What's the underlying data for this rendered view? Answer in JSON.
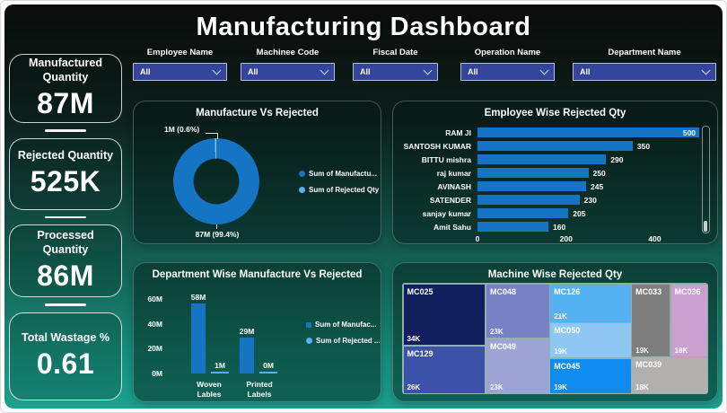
{
  "page_title": "Manufacturing Dashboard",
  "kpis": [
    {
      "label": "Manufactured Quantity",
      "value": "87M"
    },
    {
      "label": "Rejected Quantity",
      "value": "525K"
    },
    {
      "label": "Processed Quantity",
      "value": "86M"
    },
    {
      "label": "Total Wastage %",
      "value": "0.61"
    }
  ],
  "filters": [
    {
      "label": "Employee Name",
      "value": "All"
    },
    {
      "label": "Machinee Code",
      "value": "All"
    },
    {
      "label": "Fiscal Date",
      "value": "All"
    },
    {
      "label": "Operation Name",
      "value": "All"
    },
    {
      "label": "Department Name",
      "value": "All"
    }
  ],
  "chart_data": [
    {
      "type": "pie",
      "title": "Manufacture Vs Rejected",
      "legend_position": "right",
      "slices": [
        {
          "name": "Sum of Manufacture Qty",
          "label": "87M (99.4%)",
          "pct": 99.4,
          "value": "87M",
          "color": "#1574C4"
        },
        {
          "name": "Sum of Rejected Qty",
          "label": "1M (0.6%)",
          "pct": 0.6,
          "value": "1M",
          "color": "#7CC2F2"
        }
      ],
      "legend": [
        {
          "label": "Sum of Manufactu...",
          "color": "#1574C4"
        },
        {
          "label": "Sum of Rejected Qty",
          "color": "#54B0F0"
        }
      ]
    },
    {
      "type": "bar",
      "title": "Employee Wise Rejected Qty",
      "orientation": "horizontal",
      "bar_color": "#1574C4",
      "x_ticks": [
        "0",
        "200",
        "400"
      ],
      "x_max": 506,
      "rows": [
        {
          "name": "RAM JI",
          "value": 500
        },
        {
          "name": "SANTOSH KUMAR",
          "value": 350
        },
        {
          "name": "BITTU mishra",
          "value": 290
        },
        {
          "name": "raj kumar",
          "value": 250
        },
        {
          "name": "AVINASH",
          "value": 245
        },
        {
          "name": "SATENDER",
          "value": 230
        },
        {
          "name": "sanjay kumar",
          "value": 205
        },
        {
          "name": "Amit Sahu",
          "value": 160
        }
      ]
    },
    {
      "type": "bar",
      "title": "Department Wise Manufacture Vs Rejected",
      "orientation": "vertical",
      "y_ticks": [
        "0M",
        "20M",
        "40M",
        "60M"
      ],
      "y_axis_max": 65,
      "legend": [
        {
          "label": "Sum of Manufac...",
          "color": "#1574C4"
        },
        {
          "label": "Sum of Rejected ...",
          "color": "#54B0F0"
        }
      ],
      "groups": [
        {
          "category": "Woven Lables",
          "mfg": {
            "label": "58M",
            "value": 58
          },
          "rej": {
            "label": "1M",
            "value": 1
          }
        },
        {
          "category": "Printed Labels",
          "mfg": {
            "label": "29M",
            "value": 29
          },
          "rej": {
            "label": "0M",
            "value": 0
          }
        }
      ]
    },
    {
      "type": "treemap",
      "title": "Machine Wise Rejected Qty",
      "tiles": [
        {
          "id": "MC025",
          "value": "34K",
          "color": "#111F5C"
        },
        {
          "id": "MC129",
          "value": "26K",
          "color": "#3B52A8"
        },
        {
          "id": "MC048",
          "value": "23K",
          "color": "#7681C6"
        },
        {
          "id": "MC049",
          "value": "23K",
          "color": "#9CA4D6"
        },
        {
          "id": "MC126",
          "value": "21K",
          "color": "#54B2F2"
        },
        {
          "id": "MC050",
          "value": "19K",
          "color": "#8EC8F2"
        },
        {
          "id": "MC045",
          "value": "19K",
          "color": "#0E8DEE"
        },
        {
          "id": "MC033",
          "value": "19K",
          "color": "#7E7E7E"
        },
        {
          "id": "MC036",
          "value": "18K",
          "color": "#C9A0D0"
        },
        {
          "id": "MC039",
          "value": "18K",
          "color": "#B2B0AE"
        }
      ]
    }
  ]
}
